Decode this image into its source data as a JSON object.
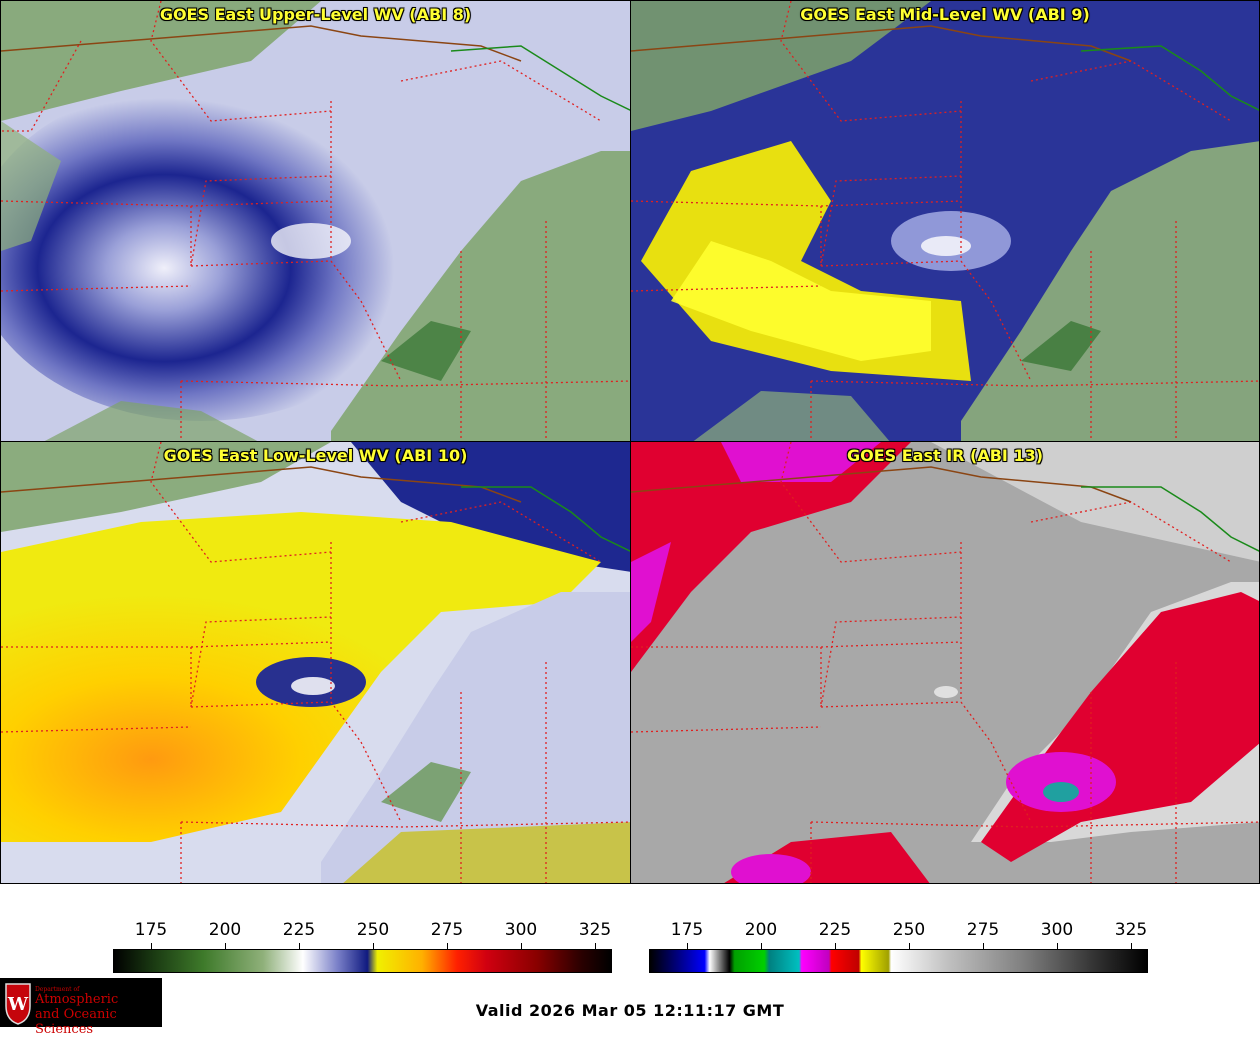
{
  "panels": [
    {
      "id": "p1",
      "title": "GOES East Upper-Level WV (ABI 8)"
    },
    {
      "id": "p2",
      "title": "GOES East Mid-Level WV (ABI 9)"
    },
    {
      "id": "p3",
      "title": "GOES East Low-Level WV (ABI 10)"
    },
    {
      "id": "p4",
      "title": "GOES East IR (ABI 13)"
    }
  ],
  "colorbars": {
    "wv": {
      "ticks": [
        "175",
        "200",
        "225",
        "250",
        "275",
        "300",
        "325"
      ]
    },
    "ir": {
      "ticks": [
        "175",
        "200",
        "225",
        "250",
        "275",
        "300",
        "325"
      ]
    }
  },
  "valid_time": "Valid 2026 Mar 05 12:11:17 GMT",
  "logo": {
    "dept": "Department of",
    "line1": "Atmospheric",
    "line2": "and Oceanic Sciences",
    "letter": "W"
  },
  "colors": {
    "title_text": "#ffff33",
    "state_borders": "#e02020",
    "country_border": "#8b4513",
    "coast": "#1a8a1a"
  }
}
